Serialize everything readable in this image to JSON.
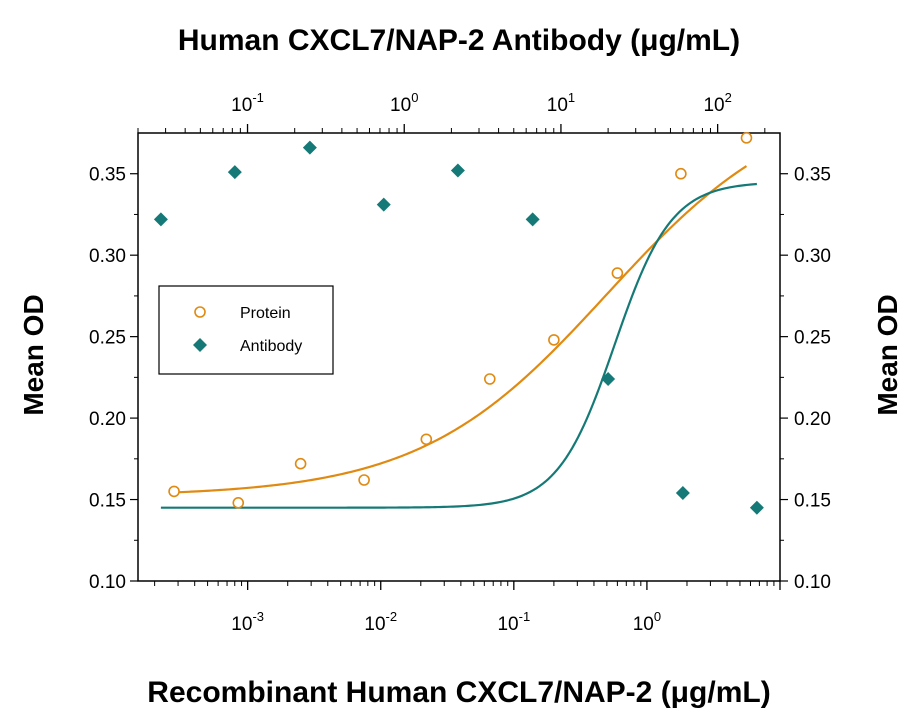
{
  "chart_data": {
    "type": "scatter",
    "title_top": "Human CXCL7/NAP-2 Antibody (μg/mL)",
    "xlabel": "Recombinant Human CXCL7/NAP-2 (μg/mL)",
    "ylabel_left": "Mean OD",
    "ylabel_right": "Mean OD",
    "ylim": [
      0.1,
      0.375
    ],
    "yticks": [
      "0.10",
      "0.15",
      "0.20",
      "0.25",
      "0.30",
      "0.35"
    ],
    "x_bottom_scale": "log",
    "x_bottom_range": [
      0.00015,
      10
    ],
    "x_bottom_ticks": [
      {
        "value": 0.001,
        "base": "10",
        "exp": "-3"
      },
      {
        "value": 0.01,
        "base": "10",
        "exp": "-2"
      },
      {
        "value": 0.1,
        "base": "10",
        "exp": "-1"
      },
      {
        "value": 1,
        "base": "10",
        "exp": "0"
      }
    ],
    "x_top_scale": "log",
    "x_top_range": [
      0.02,
      250
    ],
    "x_top_ticks": [
      {
        "value": 0.1,
        "base": "10",
        "exp": "-1"
      },
      {
        "value": 1,
        "base": "10",
        "exp": "0"
      },
      {
        "value": 10,
        "base": "10",
        "exp": "1"
      },
      {
        "value": 100,
        "base": "10",
        "exp": "2"
      }
    ],
    "legend": {
      "position": "left",
      "entries": [
        "Protein",
        "Antibody"
      ]
    },
    "series": [
      {
        "name": "Protein",
        "axis": "bottom",
        "color": "#E08A12",
        "marker": "open-circle",
        "x": [
          0.00028,
          0.00085,
          0.0025,
          0.0075,
          0.022,
          0.066,
          0.2,
          0.6,
          1.8,
          5.6
        ],
        "y": [
          0.155,
          0.148,
          0.172,
          0.162,
          0.187,
          0.224,
          0.248,
          0.289,
          0.35,
          0.372
        ]
      },
      {
        "name": "Antibody",
        "axis": "top",
        "color": "#157A77",
        "marker": "filled-diamond",
        "x": [
          0.028,
          0.083,
          0.25,
          0.74,
          2.2,
          6.6,
          20,
          60,
          178
        ],
        "y": [
          0.322,
          0.351,
          0.366,
          0.331,
          0.352,
          0.322,
          0.224,
          0.154,
          0.145
        ]
      }
    ],
    "fits": [
      {
        "series": "Protein",
        "color": "#E08A12",
        "bottom": 0.152,
        "top": 0.4,
        "ec50": 0.5,
        "hill": 0.62,
        "x_range": [
          0.00028,
          5.6
        ]
      },
      {
        "series": "Antibody",
        "color": "#157A77",
        "bottom": 0.145,
        "top": 0.345,
        "ec50": 22,
        "hill": 2.4,
        "x_range": [
          0.028,
          178
        ]
      }
    ]
  }
}
